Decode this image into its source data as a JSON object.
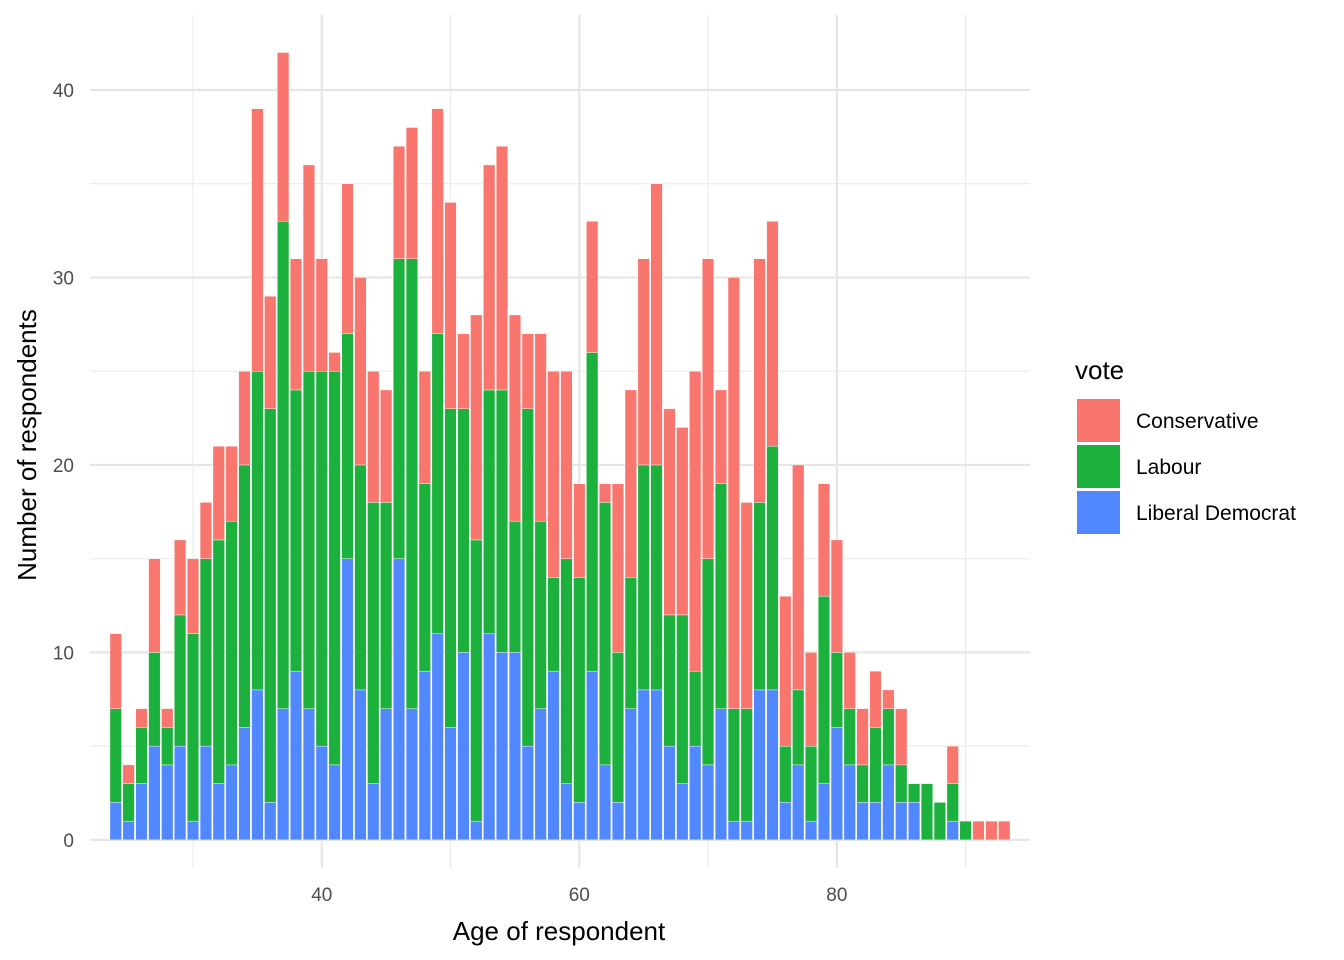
{
  "chart_data": {
    "type": "bar",
    "stacked": true,
    "title": "",
    "xlabel": "Age of respondent",
    "ylabel": "Number of respondents",
    "xlim": [
      22,
      95
    ],
    "ylim": [
      -1.5,
      44
    ],
    "x_ticks": [
      40,
      60,
      80
    ],
    "y_ticks": [
      0,
      10,
      20,
      30,
      40
    ],
    "grid": true,
    "legend": {
      "title": "vote",
      "position": "right",
      "entries": [
        {
          "name": "Conservative",
          "color": "#F8766D"
        },
        {
          "name": "Labour",
          "color": "#1CB03D"
        },
        {
          "name": "Liberal Democrat",
          "color": "#5288FF"
        }
      ]
    },
    "x": [
      24,
      25,
      26,
      27,
      28,
      29,
      30,
      31,
      32,
      33,
      34,
      35,
      36,
      37,
      38,
      39,
      40,
      41,
      42,
      43,
      44,
      45,
      46,
      47,
      48,
      49,
      50,
      51,
      52,
      53,
      54,
      55,
      56,
      57,
      58,
      59,
      60,
      61,
      62,
      63,
      64,
      65,
      66,
      67,
      68,
      69,
      70,
      71,
      72,
      73,
      74,
      75,
      76,
      77,
      78,
      79,
      80,
      81,
      82,
      83,
      84,
      85,
      86,
      87,
      88,
      89,
      90,
      91,
      92,
      93
    ],
    "series": [
      {
        "name": "Liberal Democrat",
        "color": "#5288FF",
        "values": [
          2,
          1,
          3,
          5,
          4,
          5,
          1,
          5,
          3,
          4,
          6,
          8,
          2,
          7,
          9,
          7,
          5,
          4,
          15,
          8,
          3,
          7,
          15,
          7,
          9,
          11,
          6,
          10,
          1,
          11,
          10,
          10,
          5,
          7,
          9,
          3,
          2,
          9,
          4,
          2,
          7,
          8,
          8,
          5,
          3,
          5,
          4,
          7,
          1,
          1,
          8,
          8,
          2,
          4,
          1,
          3,
          6,
          4,
          2,
          2,
          4,
          2,
          2,
          0,
          0,
          1,
          0,
          0,
          0,
          0
        ]
      },
      {
        "name": "Labour",
        "color": "#1CB03D",
        "values": [
          5,
          2,
          3,
          5,
          2,
          7,
          10,
          10,
          13,
          13,
          14,
          17,
          21,
          26,
          15,
          18,
          20,
          21,
          12,
          12,
          15,
          11,
          16,
          24,
          10,
          16,
          17,
          13,
          15,
          13,
          14,
          7,
          18,
          10,
          5,
          12,
          12,
          17,
          14,
          8,
          7,
          12,
          12,
          7,
          9,
          4,
          11,
          12,
          6,
          6,
          10,
          13,
          3,
          4,
          4,
          10,
          4,
          3,
          2,
          4,
          3,
          2,
          1,
          3,
          2,
          2,
          1,
          0,
          0,
          0
        ]
      },
      {
        "name": "Conservative",
        "color": "#F8766D",
        "values": [
          4,
          1,
          1,
          5,
          1,
          4,
          4,
          3,
          5,
          4,
          5,
          14,
          6,
          9,
          7,
          11,
          6,
          1,
          8,
          10,
          7,
          6,
          6,
          7,
          6,
          12,
          11,
          4,
          12,
          12,
          13,
          11,
          4,
          10,
          11,
          10,
          5,
          7,
          1,
          9,
          10,
          11,
          15,
          11,
          10,
          16,
          16,
          5,
          23,
          11,
          13,
          12,
          8,
          12,
          5,
          6,
          6,
          3,
          3,
          3,
          1,
          3,
          0,
          0,
          0,
          2,
          0,
          1,
          1,
          1
        ]
      }
    ]
  }
}
